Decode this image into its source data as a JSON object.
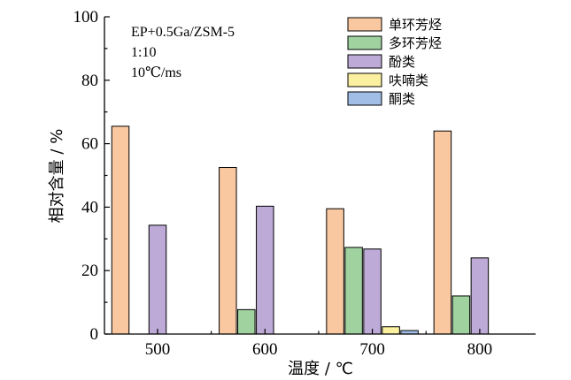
{
  "chart_data": {
    "type": "bar",
    "categories": [
      "500",
      "600",
      "700",
      "800"
    ],
    "series": [
      {
        "name": "单环芳烃",
        "color": "#FAC8A0",
        "values": [
          65.5,
          52.5,
          39.5,
          64.0
        ]
      },
      {
        "name": "多环芳烃",
        "color": "#A0D2A0",
        "values": [
          0,
          7.7,
          27.3,
          12.0
        ]
      },
      {
        "name": "酚类",
        "color": "#BEAAD7",
        "values": [
          34.3,
          40.3,
          26.8,
          24.0
        ]
      },
      {
        "name": "呋喃类",
        "color": "#FAF0A0",
        "values": [
          0,
          0,
          2.3,
          0
        ]
      },
      {
        "name": "酮类",
        "color": "#A0BEE6",
        "values": [
          0,
          0,
          1.1,
          0
        ]
      }
    ],
    "xlabel": "温度 / ℃",
    "ylabel": "相对含量 / %",
    "ylim": [
      0,
      100
    ],
    "yticks": [
      0,
      20,
      40,
      60,
      80,
      100
    ],
    "annotations": [
      "EP+0.5Ga/ZSM-5",
      "1:10",
      "10℃/ms"
    ],
    "legend_position": "top-right",
    "grid": false
  }
}
